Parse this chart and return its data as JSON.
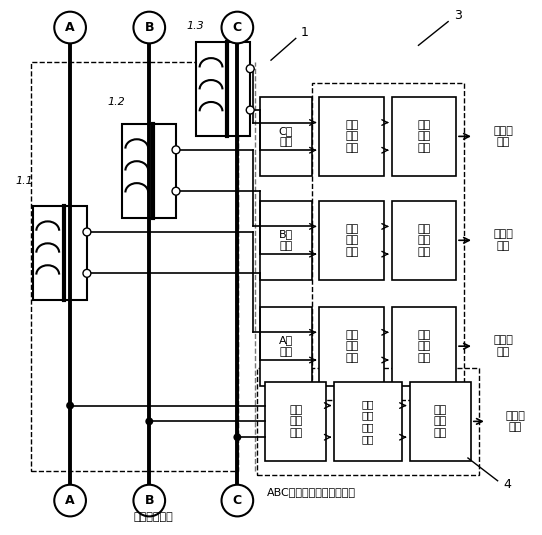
{
  "bg_color": "#ffffff",
  "phase_labels_top": [
    "A",
    "B",
    "C"
  ],
  "phase_labels_bot": [
    "A",
    "B",
    "C"
  ],
  "label1": "1",
  "label3": "3",
  "label4": "4",
  "transformer_labels": [
    "1.1",
    "1.2",
    "1.3"
  ],
  "row_phase_labels": [
    "C相\n电流",
    "B相\n电流",
    "A相\n电流"
  ],
  "sample_label": "电流\n取样\n单元",
  "filter_label": "电流\n信号\n滤波",
  "to_circuit_label": "到处理\n电路",
  "voltage_convert_label": "电压\n电流\n变换",
  "isolation_label": "高压\n隔离\n变换\n单元",
  "vsample_label": "电压\n取样\n单元",
  "bottom_label": "低压输电线路",
  "abc_voltage_label": "ABC三相电压一次提取电路"
}
